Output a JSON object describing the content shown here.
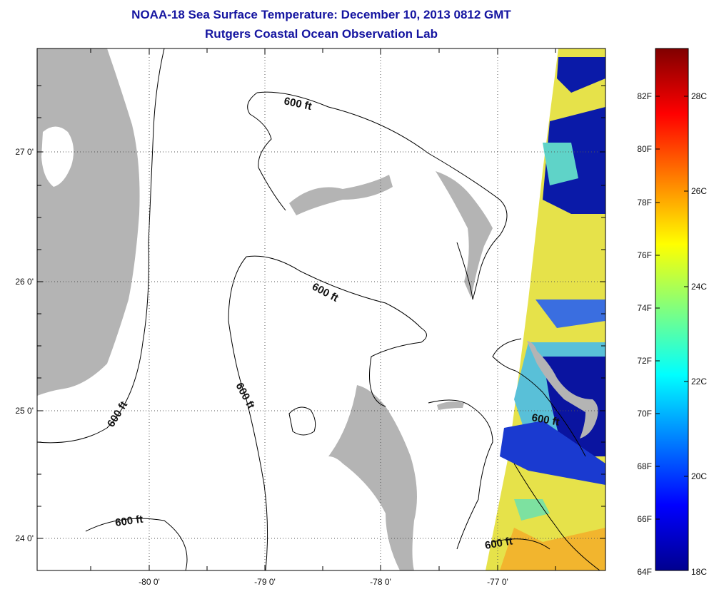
{
  "title": {
    "line1": "NOAA-18 Sea Surface Temperature:  December 10, 2013 0812 GMT",
    "line2": "Rutgers Coastal Ocean Observation Lab"
  },
  "map": {
    "lon_labels": [
      "-80 0'",
      "-79 0'",
      "-78 0'",
      "-77 0'"
    ],
    "lat_labels": [
      "27 0'",
      "26 0'",
      "25 0'",
      "24 0'"
    ],
    "contour_label": "600 ft",
    "land_color": "#b4b4b4",
    "gridlines": "dotted"
  },
  "colorbar": {
    "fahrenheit_labels": [
      "82F",
      "80F",
      "78F",
      "76F",
      "74F",
      "72F",
      "70F",
      "68F",
      "66F",
      "64F"
    ],
    "celsius_labels": [
      "28C",
      "26C",
      "24C",
      "22C",
      "20C",
      "18C"
    ],
    "colormap": "jet",
    "range_c": [
      18,
      29.5
    ]
  }
}
